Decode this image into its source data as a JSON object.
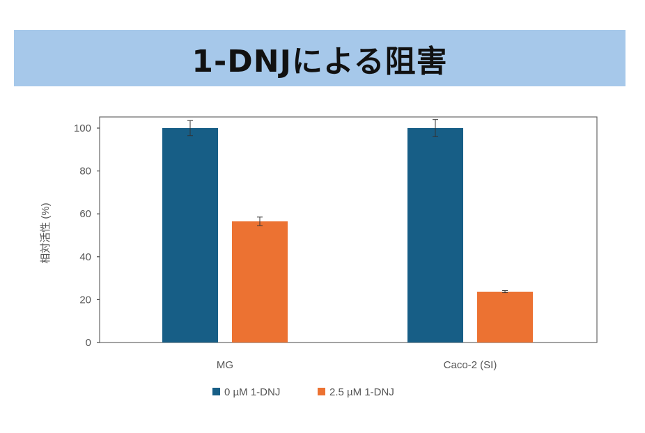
{
  "header": {
    "title": "1-DNJによる阻害"
  },
  "chart_data": {
    "type": "bar",
    "title": "",
    "xlabel": "",
    "ylabel": "相対活性 (%)",
    "ylim": [
      0,
      100
    ],
    "yticks": [
      0,
      20,
      40,
      60,
      80,
      100
    ],
    "categories": [
      "MG",
      "Caco-2 (SI)"
    ],
    "series": [
      {
        "name": "0 µM 1-DNJ",
        "color": "#175e86",
        "values": [
          100,
          100
        ],
        "errors": [
          3.5,
          4
        ]
      },
      {
        "name": "2.5 µM 1-DNJ",
        "color": "#ec7232",
        "values": [
          56.5,
          23.7
        ],
        "errors": [
          2,
          0.5
        ]
      }
    ],
    "grid": false,
    "legend": "bottom"
  }
}
